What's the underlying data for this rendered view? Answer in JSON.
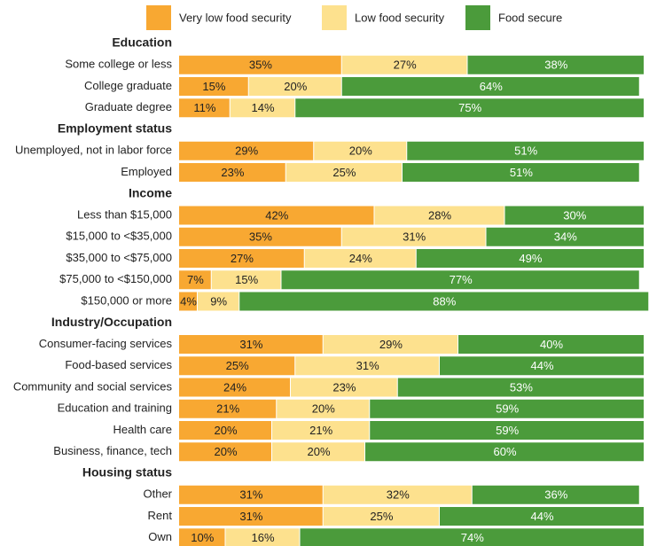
{
  "chart_data": {
    "type": "stacked-bar-horizontal",
    "xlim": [
      0,
      100
    ],
    "series": [
      {
        "name": "Very low food security",
        "color": "#f8a832"
      },
      {
        "name": "Low food security",
        "color": "#fde18e"
      },
      {
        "name": "Food secure",
        "color": "#4b9b3b"
      }
    ],
    "groups": [
      {
        "name": "Education",
        "categories": [
          "Some college or less",
          "College graduate",
          "Graduate degree"
        ],
        "values": [
          [
            35,
            27,
            38
          ],
          [
            15,
            20,
            64
          ],
          [
            11,
            14,
            75
          ]
        ],
        "value_labels": [
          [
            "35%",
            "27%",
            "38%"
          ],
          [
            "15%",
            "20%",
            "64%"
          ],
          [
            "11%",
            "14%",
            "75%"
          ]
        ]
      },
      {
        "name": "Employment status",
        "categories": [
          "Unemployed, not in labor force",
          "Employed"
        ],
        "values": [
          [
            29,
            20,
            51
          ],
          [
            23,
            25,
            51
          ]
        ],
        "value_labels": [
          [
            "29%",
            "20%",
            "51%"
          ],
          [
            "23%",
            "25%",
            "51%"
          ]
        ]
      },
      {
        "name": "Income",
        "categories": [
          "Less than $15,000",
          "$15,000 to <$35,000",
          "$35,000 to <$75,000",
          "$75,000 to <$150,000",
          "$150,000 or more"
        ],
        "values": [
          [
            42,
            28,
            30
          ],
          [
            35,
            31,
            34
          ],
          [
            27,
            24,
            49
          ],
          [
            7,
            15,
            77
          ],
          [
            4,
            9,
            88
          ]
        ],
        "value_labels": [
          [
            "42%",
            "28%",
            "30%"
          ],
          [
            "35%",
            "31%",
            "34%"
          ],
          [
            "27%",
            "24%",
            "49%"
          ],
          [
            "7%",
            "15%",
            "77%"
          ],
          [
            "4%",
            "9%",
            "88%"
          ]
        ]
      },
      {
        "name": "Industry/Occupation",
        "categories": [
          "Consumer-facing services",
          "Food-based services",
          "Community and social services",
          "Education and training",
          "Health care",
          "Business, finance, tech"
        ],
        "values": [
          [
            31,
            29,
            40
          ],
          [
            25,
            31,
            44
          ],
          [
            24,
            23,
            53
          ],
          [
            21,
            20,
            59
          ],
          [
            20,
            21,
            59
          ],
          [
            20,
            20,
            60
          ]
        ],
        "value_labels": [
          [
            "31%",
            "29%",
            "40%"
          ],
          [
            "25%",
            "31%",
            "44%"
          ],
          [
            "24%",
            "23%",
            "53%"
          ],
          [
            "21%",
            "20%",
            "59%"
          ],
          [
            "20%",
            "21%",
            "59%"
          ],
          [
            "20%",
            "20%",
            "60%"
          ]
        ]
      },
      {
        "name": "Housing status",
        "categories": [
          "Other",
          "Rent",
          "Own"
        ],
        "values": [
          [
            31,
            32,
            36
          ],
          [
            31,
            25,
            44
          ],
          [
            10,
            16,
            74
          ]
        ],
        "value_labels": [
          [
            "31%",
            "32%",
            "36%"
          ],
          [
            "31%",
            "25%",
            "44%"
          ],
          [
            "10%",
            "16%",
            "74%"
          ]
        ]
      }
    ]
  }
}
